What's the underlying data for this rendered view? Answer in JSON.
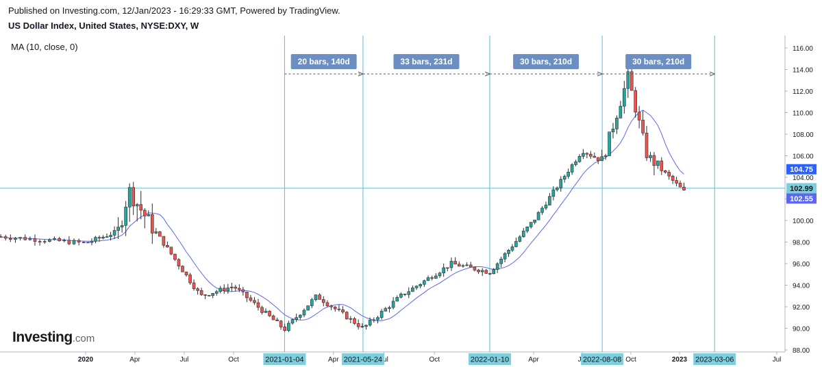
{
  "header": {
    "published": "Published on Investing.com, 12/Jan/2023 - 16:29:33 GMT, Powered by TradingView.",
    "symbol": "US Dollar Index, United States, NYSE:DXY, W"
  },
  "indicator_label": "MA (10, close, 0)",
  "logo": {
    "main": "Investing",
    "suffix": ".com"
  },
  "colors": {
    "up": "#26a69a",
    "down": "#ef5350",
    "ma": "#5b67f0",
    "crosshair": "#4fc3d9",
    "range_box": "#6b8fc2",
    "date_box": "#7ccfdb",
    "price_now": "#5b67f0",
    "ma_box": "#2962ff"
  },
  "chart_data": {
    "type": "candlestick",
    "title": "US Dollar Index, United States, NYSE:DXY, W",
    "indicator": "MA (10, close, 0)",
    "ylim": [
      87.5,
      117
    ],
    "y_ticks": [
      "88.00",
      "90.00",
      "92.00",
      "94.00",
      "96.00",
      "98.00",
      "100.00",
      "102.00",
      "104.00",
      "106.00",
      "108.00",
      "110.00",
      "112.00",
      "114.00",
      "116.00"
    ],
    "x_ticks": [
      "2020",
      "Apr",
      "Jul",
      "Oct",
      "Apr",
      "Jul",
      "Oct",
      "Apr",
      "Jul",
      "Oct",
      "2023",
      "Jul"
    ],
    "price_labels": {
      "ma": "104.75",
      "crosshair": "102.99",
      "last": "102.55"
    },
    "date_labels": [
      "2021-01-04",
      "2021-05-24",
      "2022-01-10",
      "2022-08-08",
      "2023-03-06"
    ],
    "range_labels": [
      "20 bars, 140d",
      "33 bars, 231d",
      "30 bars, 210d",
      "30 bars, 210d"
    ],
    "series_key_points": [
      {
        "x": "2019-09",
        "close": 98.5
      },
      {
        "x": "2020-01",
        "close": 97.9
      },
      {
        "x": "2020-03",
        "close": 99.0
      },
      {
        "x": "2020-03-20",
        "close": 102.8
      },
      {
        "x": "2020-05",
        "close": 99.5
      },
      {
        "x": "2020-08",
        "close": 93.0
      },
      {
        "x": "2020-10",
        "close": 93.9
      },
      {
        "x": "2021-01-04",
        "close": 89.9
      },
      {
        "x": "2021-03",
        "close": 93.0
      },
      {
        "x": "2021-05-24",
        "close": 90.0
      },
      {
        "x": "2021-08",
        "close": 93.0
      },
      {
        "x": "2021-11",
        "close": 96.0
      },
      {
        "x": "2022-01-10",
        "close": 95.2
      },
      {
        "x": "2022-04",
        "close": 100.0
      },
      {
        "x": "2022-07",
        "close": 106.5
      },
      {
        "x": "2022-08-08",
        "close": 105.5
      },
      {
        "x": "2022-09-26",
        "close": 113.3
      },
      {
        "x": "2022-11",
        "close": 106.0
      },
      {
        "x": "2023-01-12",
        "close": 102.55
      }
    ]
  }
}
